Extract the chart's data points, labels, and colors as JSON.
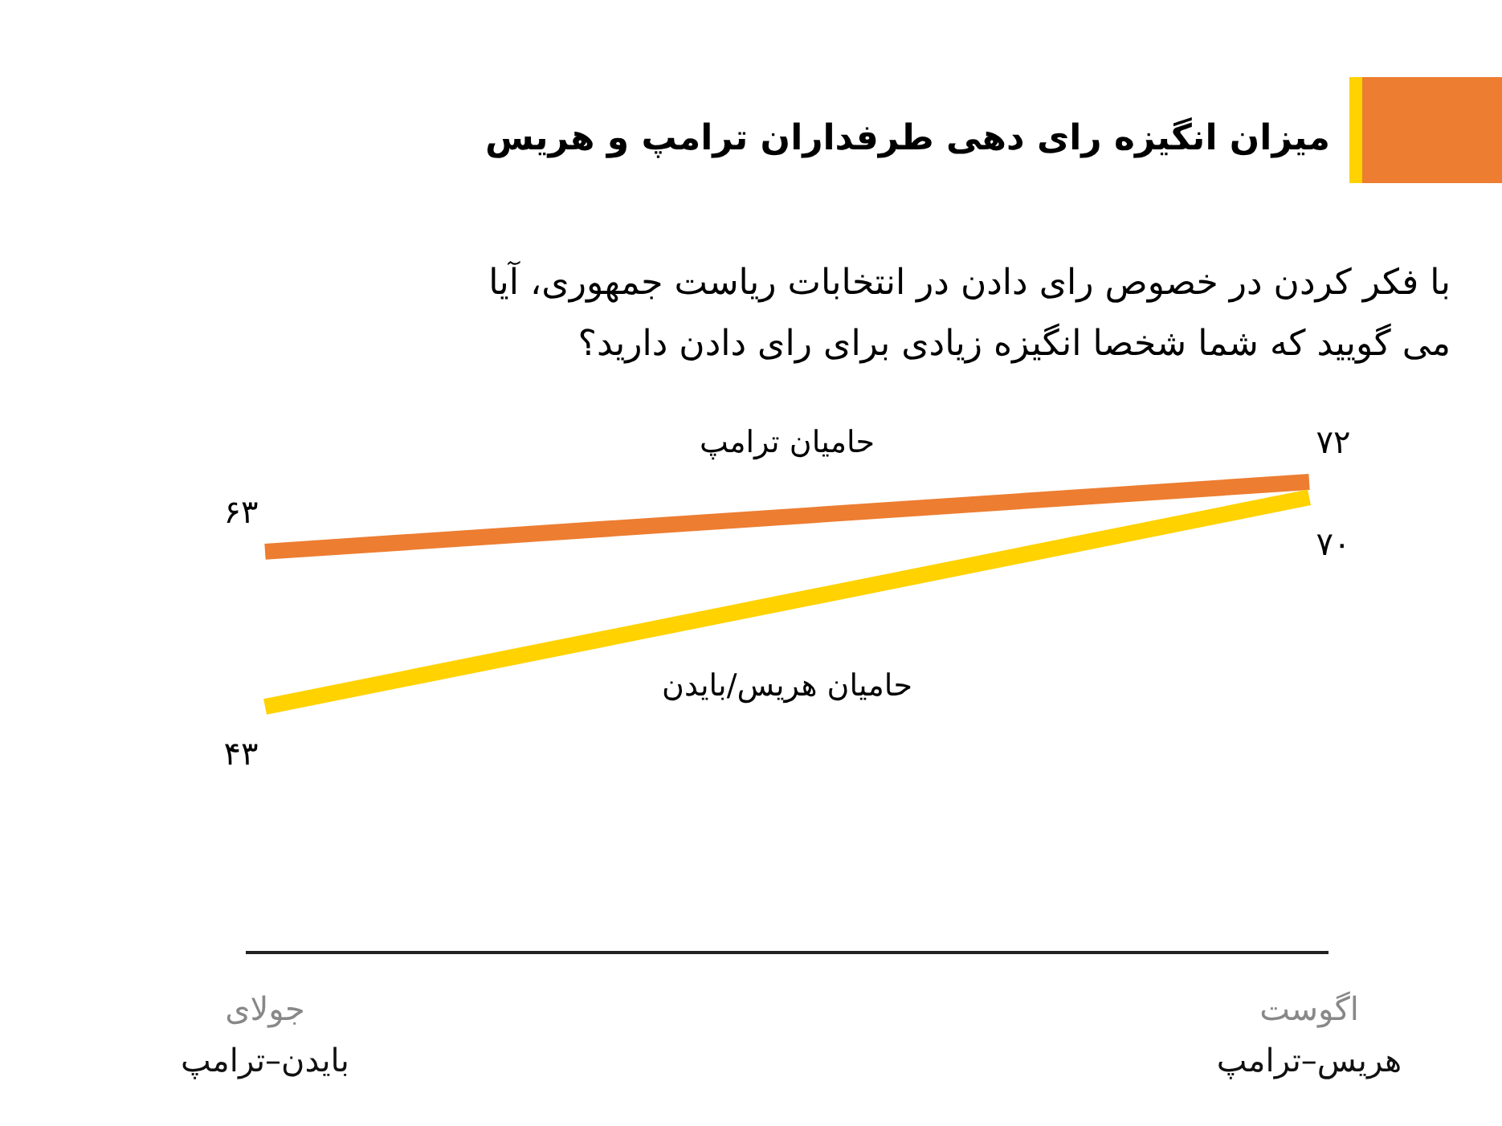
{
  "chart_data": {
    "type": "line",
    "title": "میزان انگیزه رای دهی طرفداران ترامپ و هریس",
    "subtitle": "با فکر کردن در خصوص رای دادن در انتخابات ریاست جمهوری، آیا می گویید که شما شخصا انگیزه زیادی برای رای دادن دارید؟",
    "categories": [
      "جولای\nبایدن–ترامپ",
      "اگوست\nهریس–ترامپ"
    ],
    "tick_labels": "x",
    "marker": "none",
    "line_style": "solid",
    "series": [
      {
        "name": "حامیان ترامپ",
        "color": "#ed7d31",
        "values": [
          63,
          72
        ],
        "value_labels": [
          "۶۳",
          "۷۲"
        ]
      },
      {
        "name": "حامیان هریس/بایدن",
        "color": "#ffd200",
        "values": [
          43,
          70
        ],
        "value_labels": [
          "۴۳",
          "۷۰"
        ]
      }
    ]
  }
}
